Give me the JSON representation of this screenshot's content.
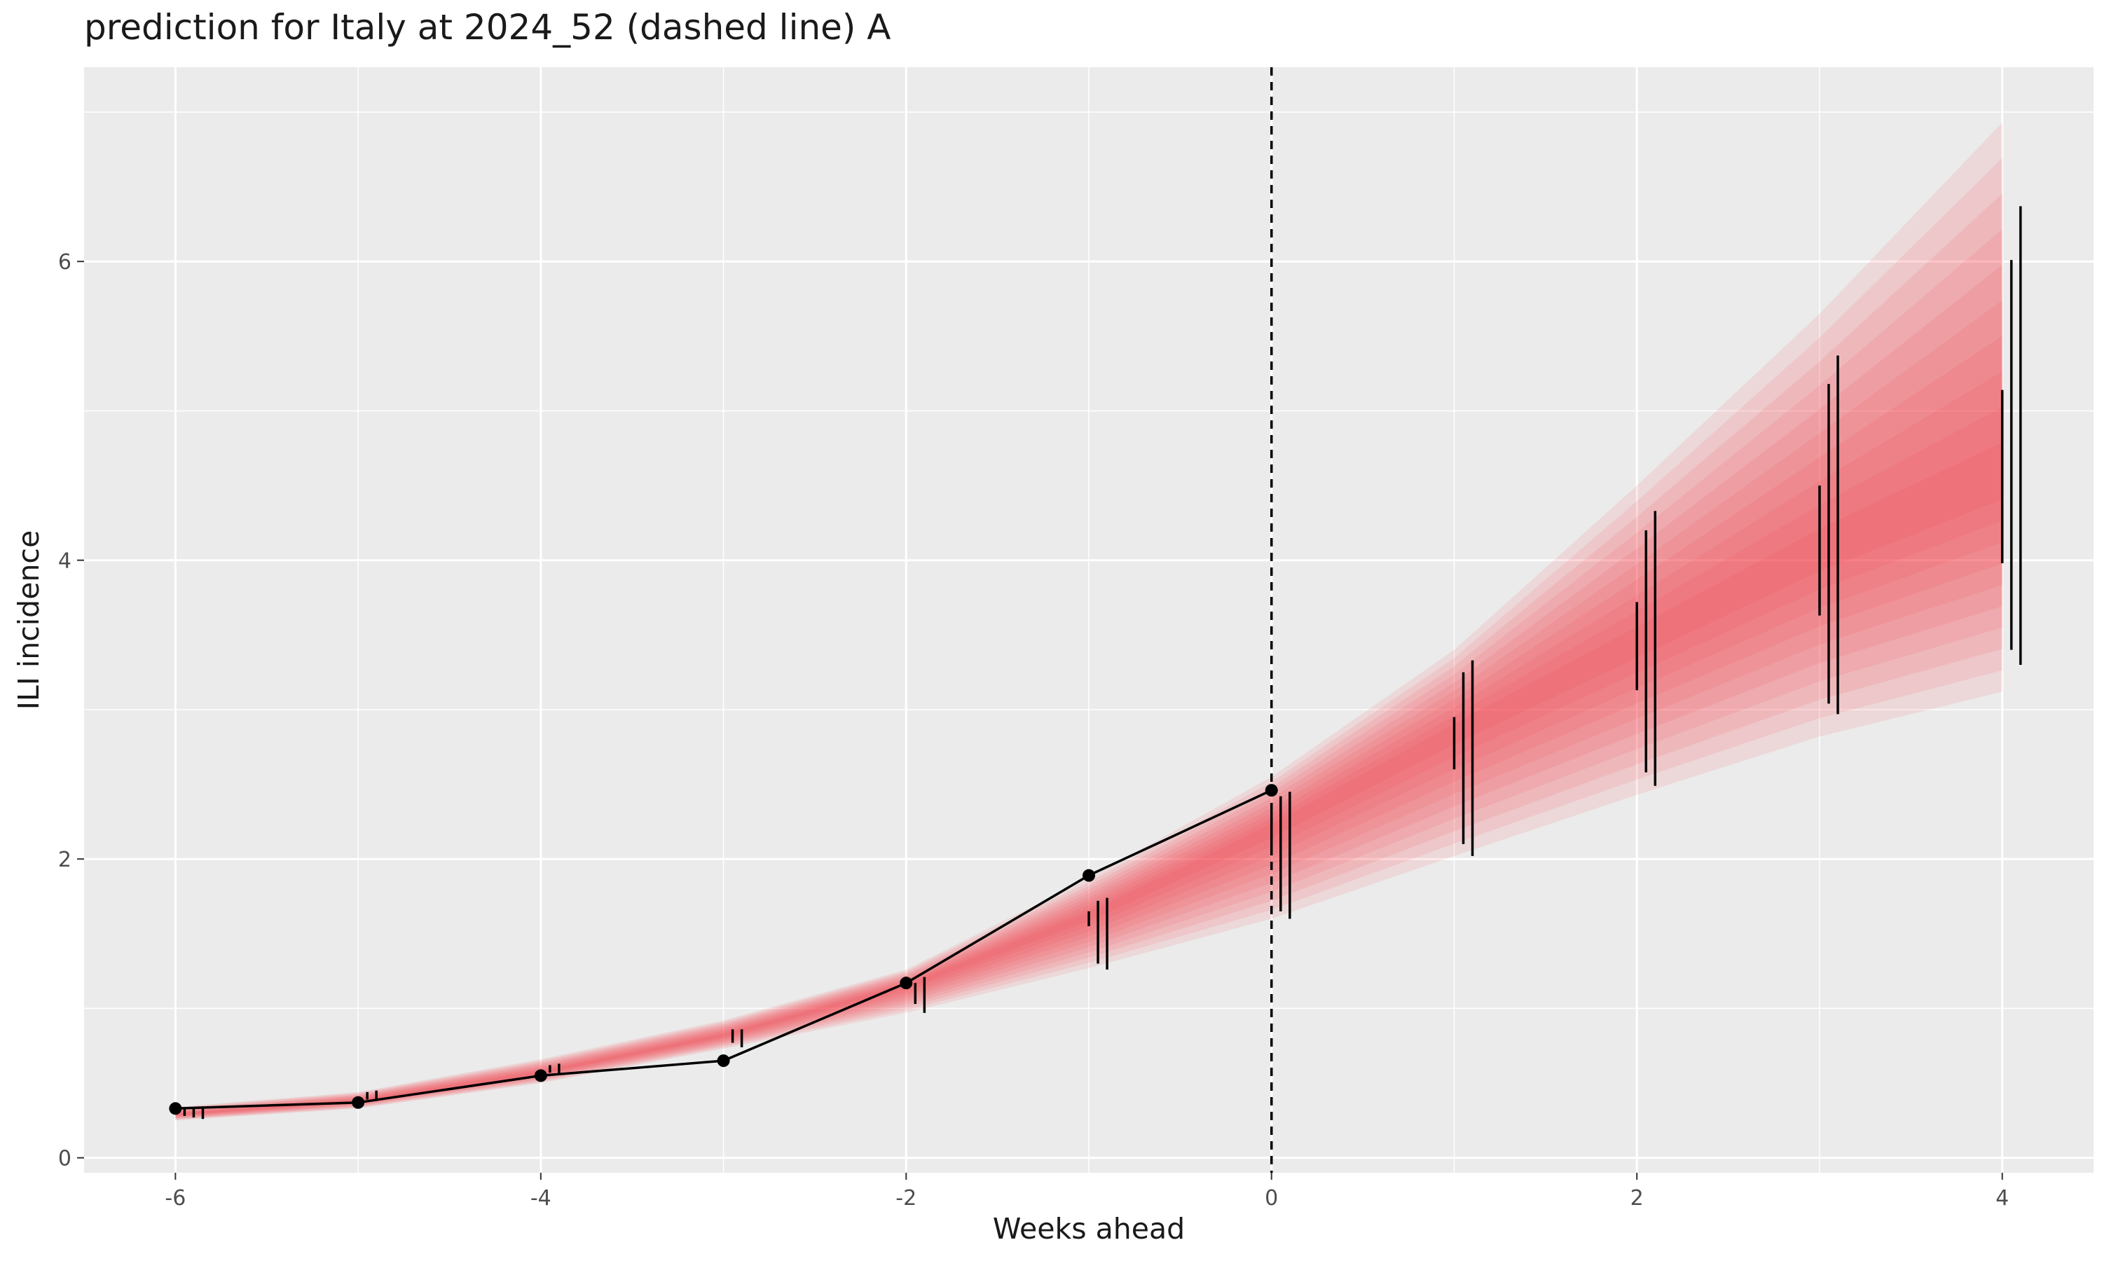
{
  "chart_data": {
    "type": "line",
    "title": "prediction for Italy at 2024_52 (dashed line) A",
    "xlabel": "Weeks ahead",
    "ylabel": "ILI incidence",
    "xlim": [
      -6.5,
      4.5
    ],
    "ylim": [
      -0.1,
      7.3
    ],
    "x_ticks": [
      -6,
      -4,
      -2,
      0,
      2,
      4
    ],
    "y_ticks": [
      0,
      2,
      4,
      6
    ],
    "grid": true,
    "legend": "none",
    "reference_line": {
      "x": 0,
      "style": "dashed"
    },
    "colors": {
      "panel": "#ebebeb",
      "grid": "#ffffff",
      "band": "#f8424a",
      "line": "#000000"
    },
    "series": [
      {
        "type": "line",
        "x": [
          -6,
          -5,
          -4,
          -3,
          -2,
          -1,
          0
        ],
        "values": [
          0.33,
          0.37,
          0.55,
          0.65,
          1.17,
          1.89,
          2.46
        ]
      }
    ],
    "prediction_bands": {
      "x": [
        -6,
        -5,
        -4,
        -3,
        -2,
        -1,
        0,
        1,
        2,
        3,
        4
      ],
      "median": [
        0.29,
        0.38,
        0.57,
        0.82,
        1.15,
        1.62,
        2.2,
        2.85,
        3.45,
        4.05,
        4.55
      ],
      "lower_95": [
        0.25,
        0.33,
        0.5,
        0.73,
        0.97,
        1.27,
        1.6,
        2.02,
        2.43,
        2.82,
        3.12
      ],
      "upper_95": [
        0.34,
        0.44,
        0.66,
        0.92,
        1.26,
        1.87,
        2.55,
        3.4,
        4.5,
        5.65,
        6.93
      ]
    },
    "intervals": [
      {
        "x": -5.95,
        "lo": 0.28,
        "hi": 0.33
      },
      {
        "x": -5.9,
        "lo": 0.27,
        "hi": 0.33
      },
      {
        "x": -5.85,
        "lo": 0.26,
        "hi": 0.34
      },
      {
        "x": -4.95,
        "lo": 0.39,
        "hi": 0.44
      },
      {
        "x": -4.9,
        "lo": 0.38,
        "hi": 0.45
      },
      {
        "x": -3.95,
        "lo": 0.57,
        "hi": 0.62
      },
      {
        "x": -3.9,
        "lo": 0.56,
        "hi": 0.63
      },
      {
        "x": -2.95,
        "lo": 0.77,
        "hi": 0.86
      },
      {
        "x": -2.9,
        "lo": 0.74,
        "hi": 0.86
      },
      {
        "x": -1.95,
        "lo": 1.03,
        "hi": 1.17
      },
      {
        "x": -1.9,
        "lo": 0.97,
        "hi": 1.21
      },
      {
        "x": -1.0,
        "lo": 1.55,
        "hi": 1.65
      },
      {
        "x": -0.95,
        "lo": 1.3,
        "hi": 1.72
      },
      {
        "x": -0.9,
        "lo": 1.26,
        "hi": 1.74
      },
      {
        "x": 0.0,
        "lo": 2.03,
        "hi": 2.32
      },
      {
        "x": 0.05,
        "lo": 1.65,
        "hi": 2.42
      },
      {
        "x": 0.1,
        "lo": 1.6,
        "hi": 2.45
      },
      {
        "x": 1.0,
        "lo": 2.6,
        "hi": 2.95
      },
      {
        "x": 1.05,
        "lo": 2.1,
        "hi": 3.25
      },
      {
        "x": 1.1,
        "lo": 2.02,
        "hi": 3.33
      },
      {
        "x": 2.0,
        "lo": 3.13,
        "hi": 3.72
      },
      {
        "x": 2.05,
        "lo": 2.58,
        "hi": 4.2
      },
      {
        "x": 2.1,
        "lo": 2.49,
        "hi": 4.33
      },
      {
        "x": 3.0,
        "lo": 3.63,
        "hi": 4.5
      },
      {
        "x": 3.05,
        "lo": 3.04,
        "hi": 5.18
      },
      {
        "x": 3.1,
        "lo": 2.97,
        "hi": 5.37
      },
      {
        "x": 4.0,
        "lo": 3.98,
        "hi": 5.14
      },
      {
        "x": 4.05,
        "lo": 3.4,
        "hi": 6.01
      },
      {
        "x": 4.1,
        "lo": 3.3,
        "hi": 6.37
      }
    ]
  }
}
